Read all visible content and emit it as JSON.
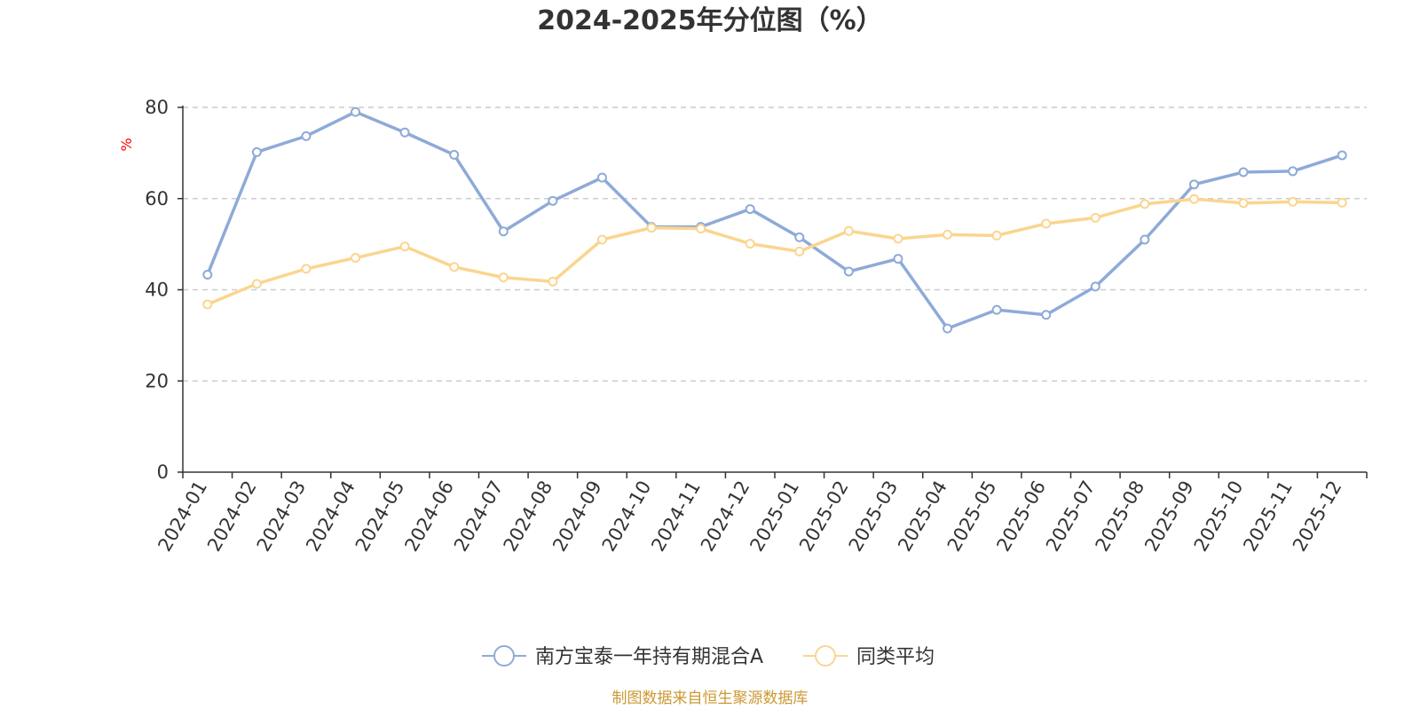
{
  "chart_data": {
    "type": "line",
    "title": "2024-2025年分位图（%）",
    "ylabel": "%",
    "xlabel": "",
    "ylim": [
      0,
      80
    ],
    "yticks": [
      0,
      20,
      40,
      60,
      80
    ],
    "grid": true,
    "legend_position": "bottom",
    "categories": [
      "2024-01",
      "2024-02",
      "2024-03",
      "2024-04",
      "2024-05",
      "2024-06",
      "2024-07",
      "2024-08",
      "2024-09",
      "2024-10",
      "2024-11",
      "2024-12",
      "2025-01",
      "2025-02",
      "2025-03",
      "2025-04",
      "2025-05",
      "2025-06",
      "2025-07",
      "2025-08",
      "2025-09",
      "2025-10",
      "2025-11",
      "2025-12"
    ],
    "series": [
      {
        "name": "南方宝泰一年持有期混合A",
        "color": "#8eaad8",
        "values": [
          43.3,
          70.2,
          73.7,
          79.0,
          74.5,
          69.6,
          52.8,
          59.5,
          64.6,
          53.8,
          53.8,
          57.7,
          51.5,
          44.0,
          46.8,
          31.5,
          35.6,
          34.5,
          40.7,
          51.0,
          63.1,
          65.8,
          66.0,
          69.5
        ]
      },
      {
        "name": "同类平均",
        "color": "#fbd58f",
        "values": [
          36.8,
          41.3,
          44.6,
          47.0,
          49.5,
          45.0,
          42.7,
          41.8,
          51.0,
          53.6,
          53.4,
          50.1,
          48.4,
          52.9,
          51.2,
          52.1,
          51.9,
          54.5,
          55.8,
          58.8,
          59.9,
          59.0,
          59.3,
          59.1
        ]
      }
    ]
  },
  "footer": {
    "source": "制图数据来自恒生聚源数据库"
  },
  "colors": {
    "axis": "#333333",
    "grid": "#cccccc",
    "unit_label": "#ff0000",
    "source_label": "#cc9933"
  }
}
